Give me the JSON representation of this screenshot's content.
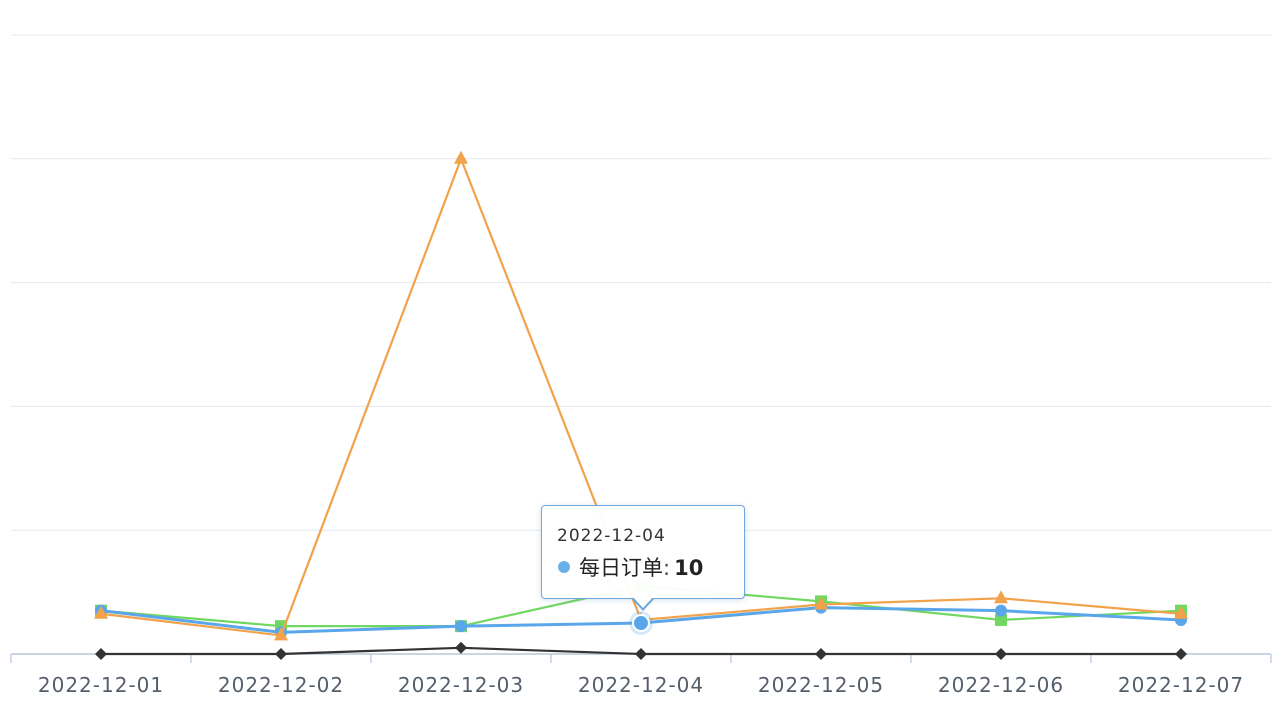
{
  "chart_data": {
    "type": "line",
    "title": "",
    "xlabel": "",
    "ylabel": "",
    "ylim": [
      0,
      200
    ],
    "grid": true,
    "categories": [
      "2022-12-01",
      "2022-12-02",
      "2022-12-03",
      "2022-12-04",
      "2022-12-05",
      "2022-12-06",
      "2022-12-07"
    ],
    "series": [
      {
        "name": "每日订单",
        "color": "#5aa6ea",
        "marker": "circle",
        "values": [
          14,
          7,
          9,
          10,
          15,
          14,
          11
        ]
      },
      {
        "name": "",
        "color": "#70d860",
        "marker": "square",
        "values": [
          14,
          9,
          9,
          22,
          17,
          11,
          14
        ]
      },
      {
        "name": "",
        "color": "#f2a24a",
        "marker": "triangle",
        "values": [
          13,
          6,
          160,
          11,
          16,
          18,
          13
        ]
      },
      {
        "name": "",
        "color": "#333333",
        "marker": "diamond",
        "values": [
          0,
          0,
          2,
          0,
          0,
          0,
          0
        ]
      }
    ]
  },
  "tooltip": {
    "date": "2022-12-04",
    "series_name": "每日订单",
    "separator": ":",
    "value": "10"
  }
}
